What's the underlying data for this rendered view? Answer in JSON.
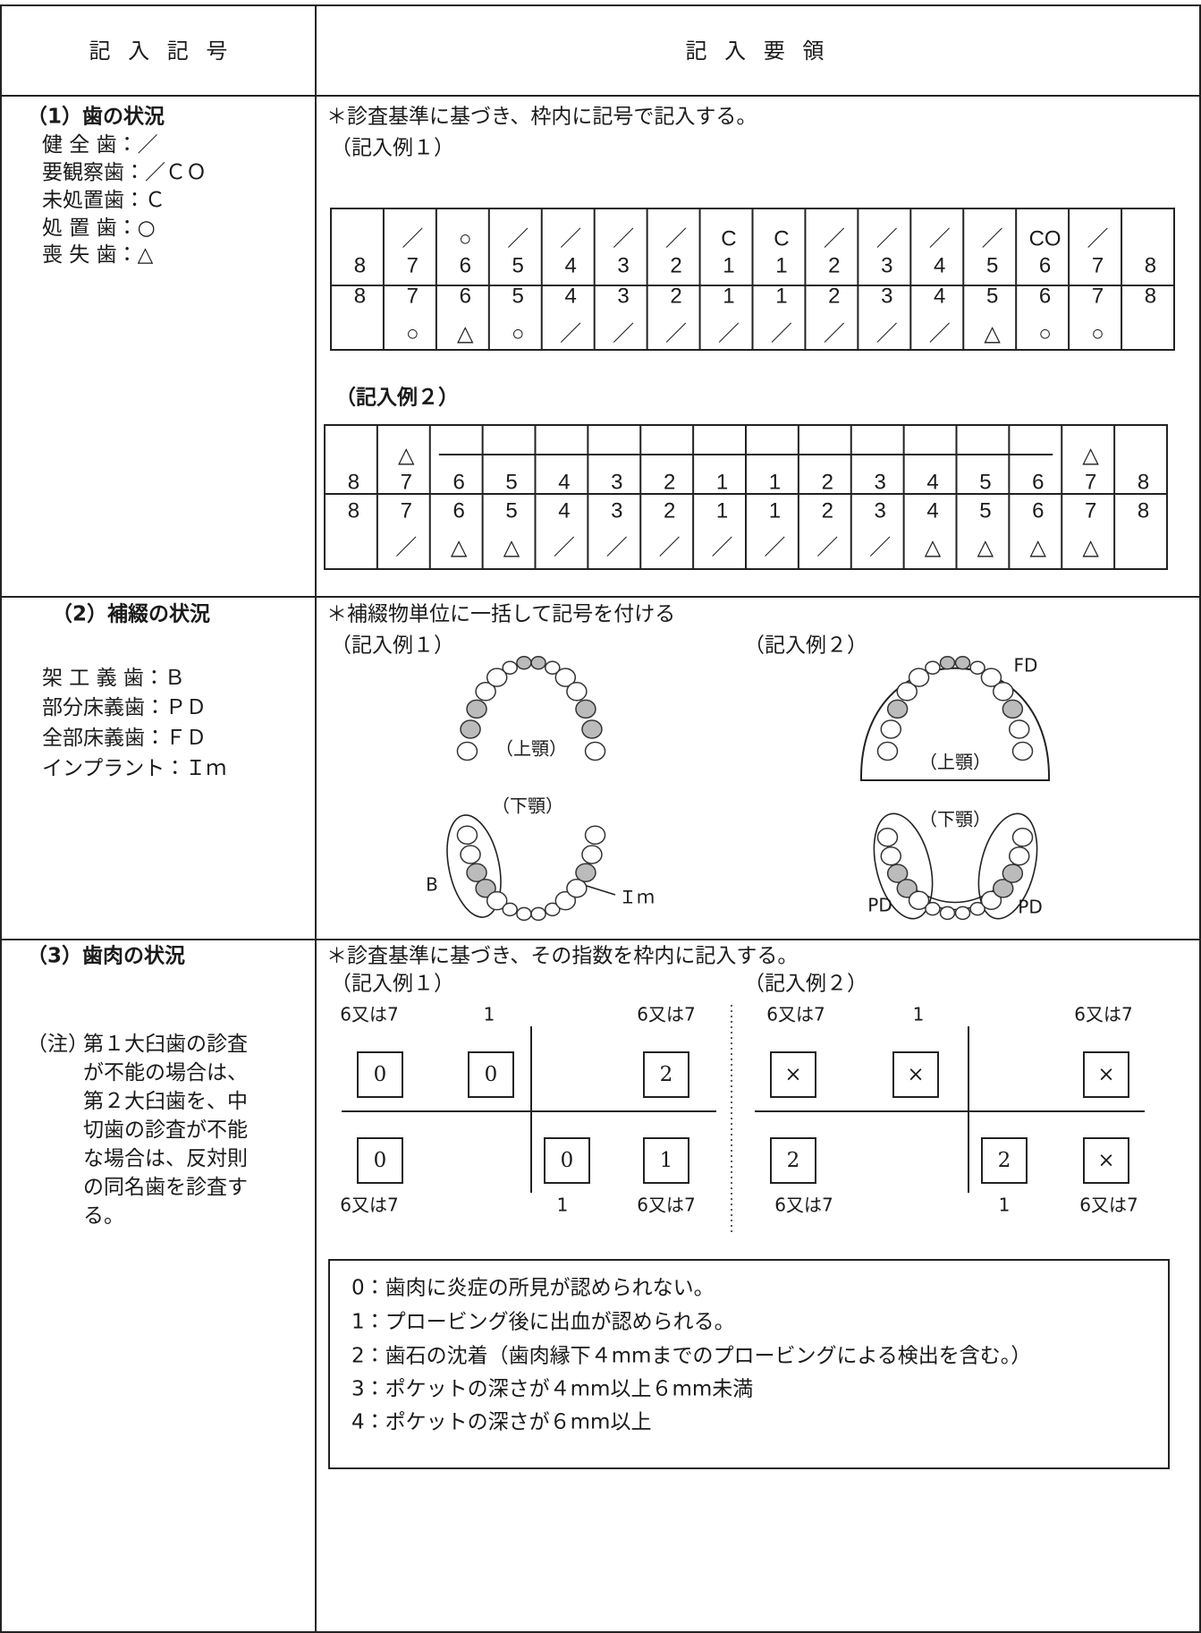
{
  "header": {
    "left": "記 入 記 号",
    "right": "記 入 要 領"
  },
  "sections": [
    {
      "title": "（1）歯の状況",
      "items": [
        "健 全 歯：／",
        "要観察歯：／ＣＯ",
        "未処置歯：Ｃ",
        "処 置 歯：○",
        "喪 失 歯：△"
      ],
      "instruction": "＊診査基準に基づき、枠内に記号で記入する。",
      "example1": {
        "label": "（記入例１）",
        "upper_marks": [
          null,
          "／",
          "○",
          "／",
          "／",
          "／",
          "／",
          "C",
          "C",
          "／",
          "／",
          "／",
          "／",
          "CO",
          "／",
          null
        ],
        "upper_numbers": [
          "8",
          "7",
          "6",
          "5",
          "4",
          "3",
          "2",
          "1",
          "1",
          "2",
          "3",
          "4",
          "5",
          "6",
          "7",
          "8"
        ],
        "lower_numbers": [
          "8",
          "7",
          "6",
          "5",
          "4",
          "3",
          "2",
          "1",
          "1",
          "2",
          "3",
          "4",
          "5",
          "6",
          "7",
          "8"
        ],
        "lower_marks": [
          null,
          "○",
          "△",
          "○",
          "／",
          "／",
          "／",
          "／",
          "／",
          "／",
          "／",
          "／",
          "△",
          "○",
          "○",
          null
        ]
      },
      "example2": {
        "label": "（記入例２）",
        "upper_marks": [
          null,
          "△",
          null,
          null,
          null,
          null,
          null,
          null,
          null,
          null,
          null,
          null,
          null,
          null,
          "△",
          null
        ],
        "upper_numbers": [
          "8",
          "7",
          "6",
          "5",
          "4",
          "3",
          "2",
          "1",
          "1",
          "2",
          "3",
          "4",
          "5",
          "6",
          "7",
          "8"
        ],
        "lower_numbers": [
          "8",
          "7",
          "6",
          "5",
          "4",
          "3",
          "2",
          "1",
          "1",
          "2",
          "3",
          "4",
          "5",
          "6",
          "7",
          "8"
        ],
        "lower_marks": [
          null,
          "／",
          "△",
          "△",
          "／",
          "／",
          "／",
          "／",
          "／",
          "／",
          "／",
          "△",
          "△",
          "△",
          "△",
          null
        ]
      }
    },
    {
      "title": "（2）補綴の状況",
      "items": [
        "架 工 義 歯：Ｂ",
        "部分床義歯：ＰＤ",
        "全部床義歯：ＦＤ",
        "インプラント：Ｉｍ"
      ],
      "instruction": "＊補綴物単位に一括して記号を付ける",
      "example1": {
        "label": "（記入例１）",
        "upper_jaw": "（上顎）",
        "lower_jaw": "（下顎）",
        "bridge": "B",
        "implant": "Ｉｍ"
      },
      "example2": {
        "label": "（記入例２）",
        "full_denture": "FD",
        "upper_jaw": "（上顎）",
        "lower_jaw": "（下顎）",
        "partial_denture_left": "PD",
        "partial_denture_right": "PD"
      }
    },
    {
      "title": "（3）歯肉の状況",
      "note_label": "（注）",
      "note_lines": [
        "第１大臼歯の診査",
        "が不能の場合は、",
        "第２大臼歯を、中",
        "切歯の診査が不能",
        "な場合は、反対則",
        "の同名歯を診査す",
        "る。"
      ],
      "instruction": "＊診査基準に基づき、その指数を枠内に記入する。",
      "example1": {
        "label": "（記入例１）",
        "top_labels": [
          "6又は7",
          "1",
          "6又は7"
        ],
        "top_values": [
          "0",
          "0",
          "2"
        ],
        "bottom_values": [
          "0",
          "0",
          "1"
        ],
        "bottom_labels": [
          "6又は7",
          "1",
          "6又は7"
        ]
      },
      "example2": {
        "label": "（記入例２）",
        "top_labels": [
          "6又は7",
          "1",
          "6又は7"
        ],
        "top_values": [
          "×",
          "×",
          "×"
        ],
        "bottom_values": [
          "2",
          "2",
          "×"
        ],
        "bottom_labels": [
          "6又は7",
          "1",
          "6又は7"
        ]
      },
      "legend": [
        "0：歯肉に炎症の所見が認められない。",
        "1：プロービング後に出血が認められる。",
        "2：歯石の沈着（歯肉縁下４mmまでのプロービングによる検出を含む。）",
        "3：ポケットの深さが４mm以上６mm未満",
        "4：ポケットの深さが６mm以上"
      ]
    }
  ]
}
